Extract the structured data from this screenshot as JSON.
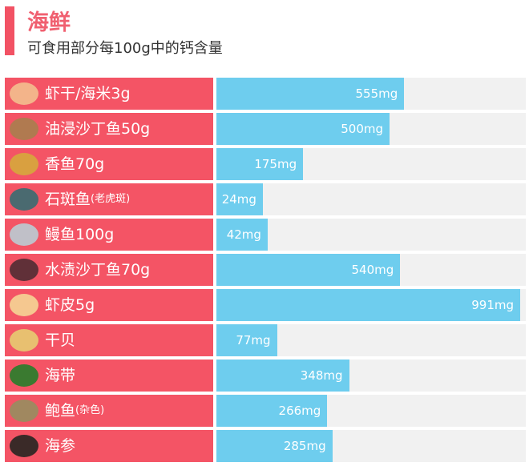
{
  "header": {
    "title": "海鲜",
    "subtitle": "可食用部分每100g中的钙含量"
  },
  "colors": {
    "label_bg": "#f45465",
    "bar": "#6ecdee",
    "track": "#f1f1f1",
    "accent": "#f25264"
  },
  "chart_data": {
    "type": "bar",
    "orientation": "horizontal",
    "title": "海鲜",
    "subtitle": "可食用部分每100g中的钙含量",
    "unit": "mg",
    "categories": [
      {
        "name": "虾干/海米3g",
        "suffix": "",
        "icon": "dried-shrimp-icon",
        "icon_color": "#f3b48a",
        "value": 555,
        "label": "555mg"
      },
      {
        "name": "油浸沙丁鱼50g",
        "suffix": "",
        "icon": "canned-sardine-icon",
        "icon_color": "#b07a50",
        "value": 500,
        "label": "500mg"
      },
      {
        "name": "香鱼70g",
        "suffix": "",
        "icon": "sweetfish-icon",
        "icon_color": "#d9a040",
        "value": 175,
        "label": "175mg"
      },
      {
        "name": "石斑鱼",
        "suffix": "(老虎斑)",
        "icon": "grouper-icon",
        "icon_color": "#4a6a70",
        "value": 24,
        "label": "24mg"
      },
      {
        "name": "鳗鱼100g",
        "suffix": "",
        "icon": "eel-icon",
        "icon_color": "#c0c0c8",
        "value": 42,
        "label": "42mg"
      },
      {
        "name": "水渍沙丁鱼70g",
        "suffix": "",
        "icon": "sardine-icon",
        "icon_color": "#603038",
        "value": 540,
        "label": "540mg"
      },
      {
        "name": "虾皮5g",
        "suffix": "",
        "icon": "shrimp-skin-icon",
        "icon_color": "#f5c890",
        "value": 991,
        "label": "991mg"
      },
      {
        "name": "干贝",
        "suffix": "",
        "icon": "scallop-icon",
        "icon_color": "#e8c070",
        "value": 77,
        "label": "77mg"
      },
      {
        "name": "海带",
        "suffix": "",
        "icon": "kelp-icon",
        "icon_color": "#3a7a30",
        "value": 348,
        "label": "348mg"
      },
      {
        "name": "鲍鱼",
        "suffix": "(杂色)",
        "icon": "abalone-icon",
        "icon_color": "#a08860",
        "value": 266,
        "label": "266mg"
      },
      {
        "name": "海参",
        "suffix": "",
        "icon": "sea-cucumber-icon",
        "icon_color": "#3a2a28",
        "value": 285,
        "label": "285mg"
      }
    ]
  }
}
